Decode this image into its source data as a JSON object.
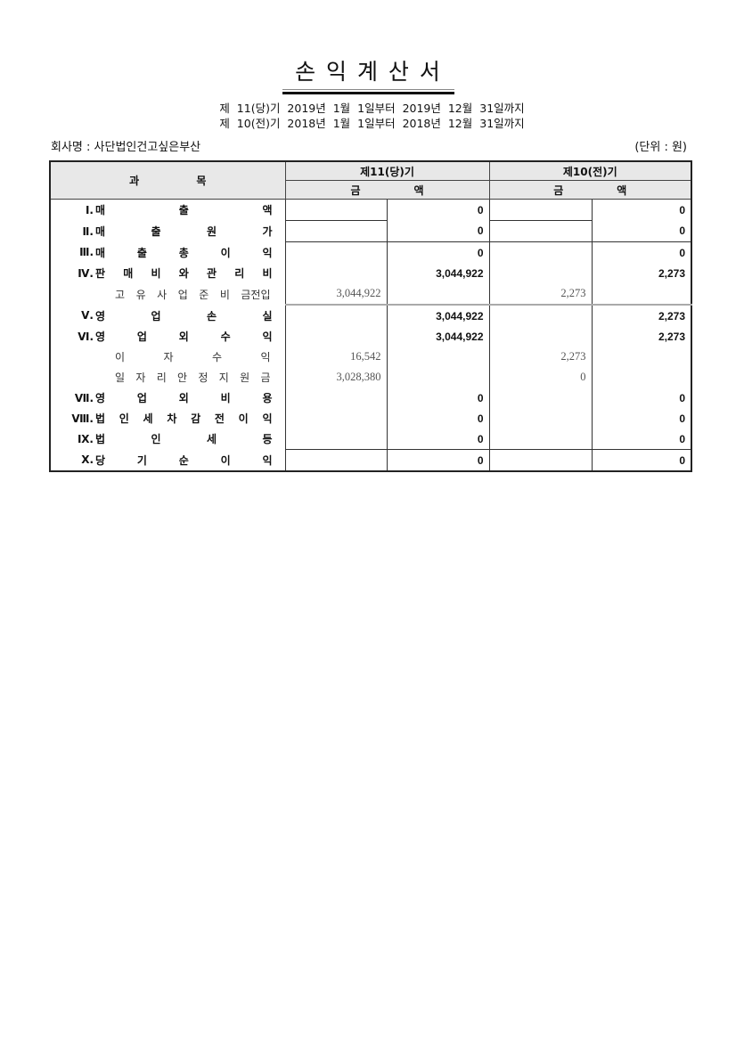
{
  "title": "손 익 계 산 서",
  "periods": [
    "제 11(당)기 2019년  1월  1일부터  2019년 12월 31일까지",
    "제 10(전)기 2018년  1월  1일부터  2018년 12월 31일까지"
  ],
  "company": "회사명 : 사단법인건고싶은부산",
  "unit": "(단위 : 원)",
  "header": {
    "subject": "과 목",
    "current": "제11(당)기",
    "prior": "제10(전)기",
    "amount_a": "금",
    "amount_b": "액"
  },
  "rows": [
    {
      "type": "main",
      "num": "Ⅰ.",
      "label": "매 출 액",
      "c1": "",
      "c2": "0",
      "c3": "",
      "c4": "0"
    },
    {
      "type": "main",
      "num": "Ⅱ.",
      "label": "매 출 원 가",
      "c1": "",
      "c2": "0",
      "c3": "",
      "c4": "0"
    },
    {
      "type": "main",
      "num": "Ⅲ.",
      "label": "매 출 총 이 익",
      "c1": "",
      "c2": "0",
      "c3": "",
      "c4": "0"
    },
    {
      "type": "main",
      "num": "Ⅳ.",
      "label": "판 매 비 와 관 리 비",
      "c1": "",
      "c2": "3,044,922",
      "c3": "",
      "c4": "2,273"
    },
    {
      "type": "sub",
      "num": "",
      "label": "고 유 사 업 준 비 금전입",
      "c1": "3,044,922",
      "c2": "",
      "c3": "2,273",
      "c4": ""
    },
    {
      "type": "main",
      "num": "Ⅴ.",
      "label": "영 업 손 실",
      "c1": "",
      "c2": "3,044,922",
      "c3": "",
      "c4": "2,273"
    },
    {
      "type": "main",
      "num": "Ⅵ.",
      "label": "영 업 외 수 익",
      "c1": "",
      "c2": "3,044,922",
      "c3": "",
      "c4": "2,273"
    },
    {
      "type": "sub",
      "num": "",
      "label": "이 자 수 익",
      "c1": "16,542",
      "c2": "",
      "c3": "2,273",
      "c4": ""
    },
    {
      "type": "sub",
      "num": "",
      "label": "일 자 리 안 정 지 원 금",
      "c1": "3,028,380",
      "c2": "",
      "c3": "0",
      "c4": ""
    },
    {
      "type": "main",
      "num": "Ⅶ.",
      "label": "영 업 외 비 용",
      "c1": "",
      "c2": "0",
      "c3": "",
      "c4": "0"
    },
    {
      "type": "main",
      "num": "Ⅷ.",
      "label": "법 인 세 차 감 전 이 익",
      "c1": "",
      "c2": "0",
      "c3": "",
      "c4": "0"
    },
    {
      "type": "main",
      "num": "Ⅸ.",
      "label": "법 인 세 등",
      "c1": "",
      "c2": "0",
      "c3": "",
      "c4": "0"
    },
    {
      "type": "main",
      "num": "Ⅹ.",
      "label": "당 기 순 이 익",
      "c1": "",
      "c2": "0",
      "c3": "",
      "c4": "0"
    }
  ]
}
